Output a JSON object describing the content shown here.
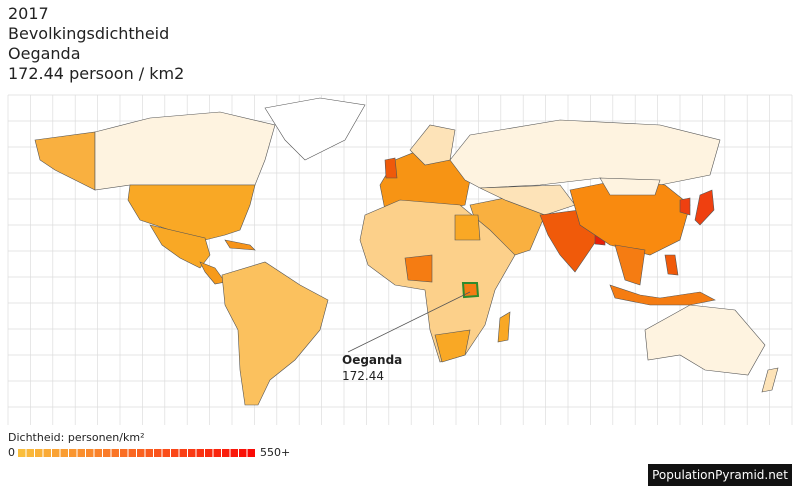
{
  "header": {
    "year": "2017",
    "metric": "Bevolkingsdichtheid",
    "country": "Oeganda",
    "value": "172.44 persoon / km2"
  },
  "tooltip": {
    "country": "Oeganda",
    "value": 172.44
  },
  "legend": {
    "title": "Dichtheid: personen/km²",
    "min": "0",
    "max": "550+"
  },
  "footer": {
    "brand": "PopulationPyramid.net"
  }
}
